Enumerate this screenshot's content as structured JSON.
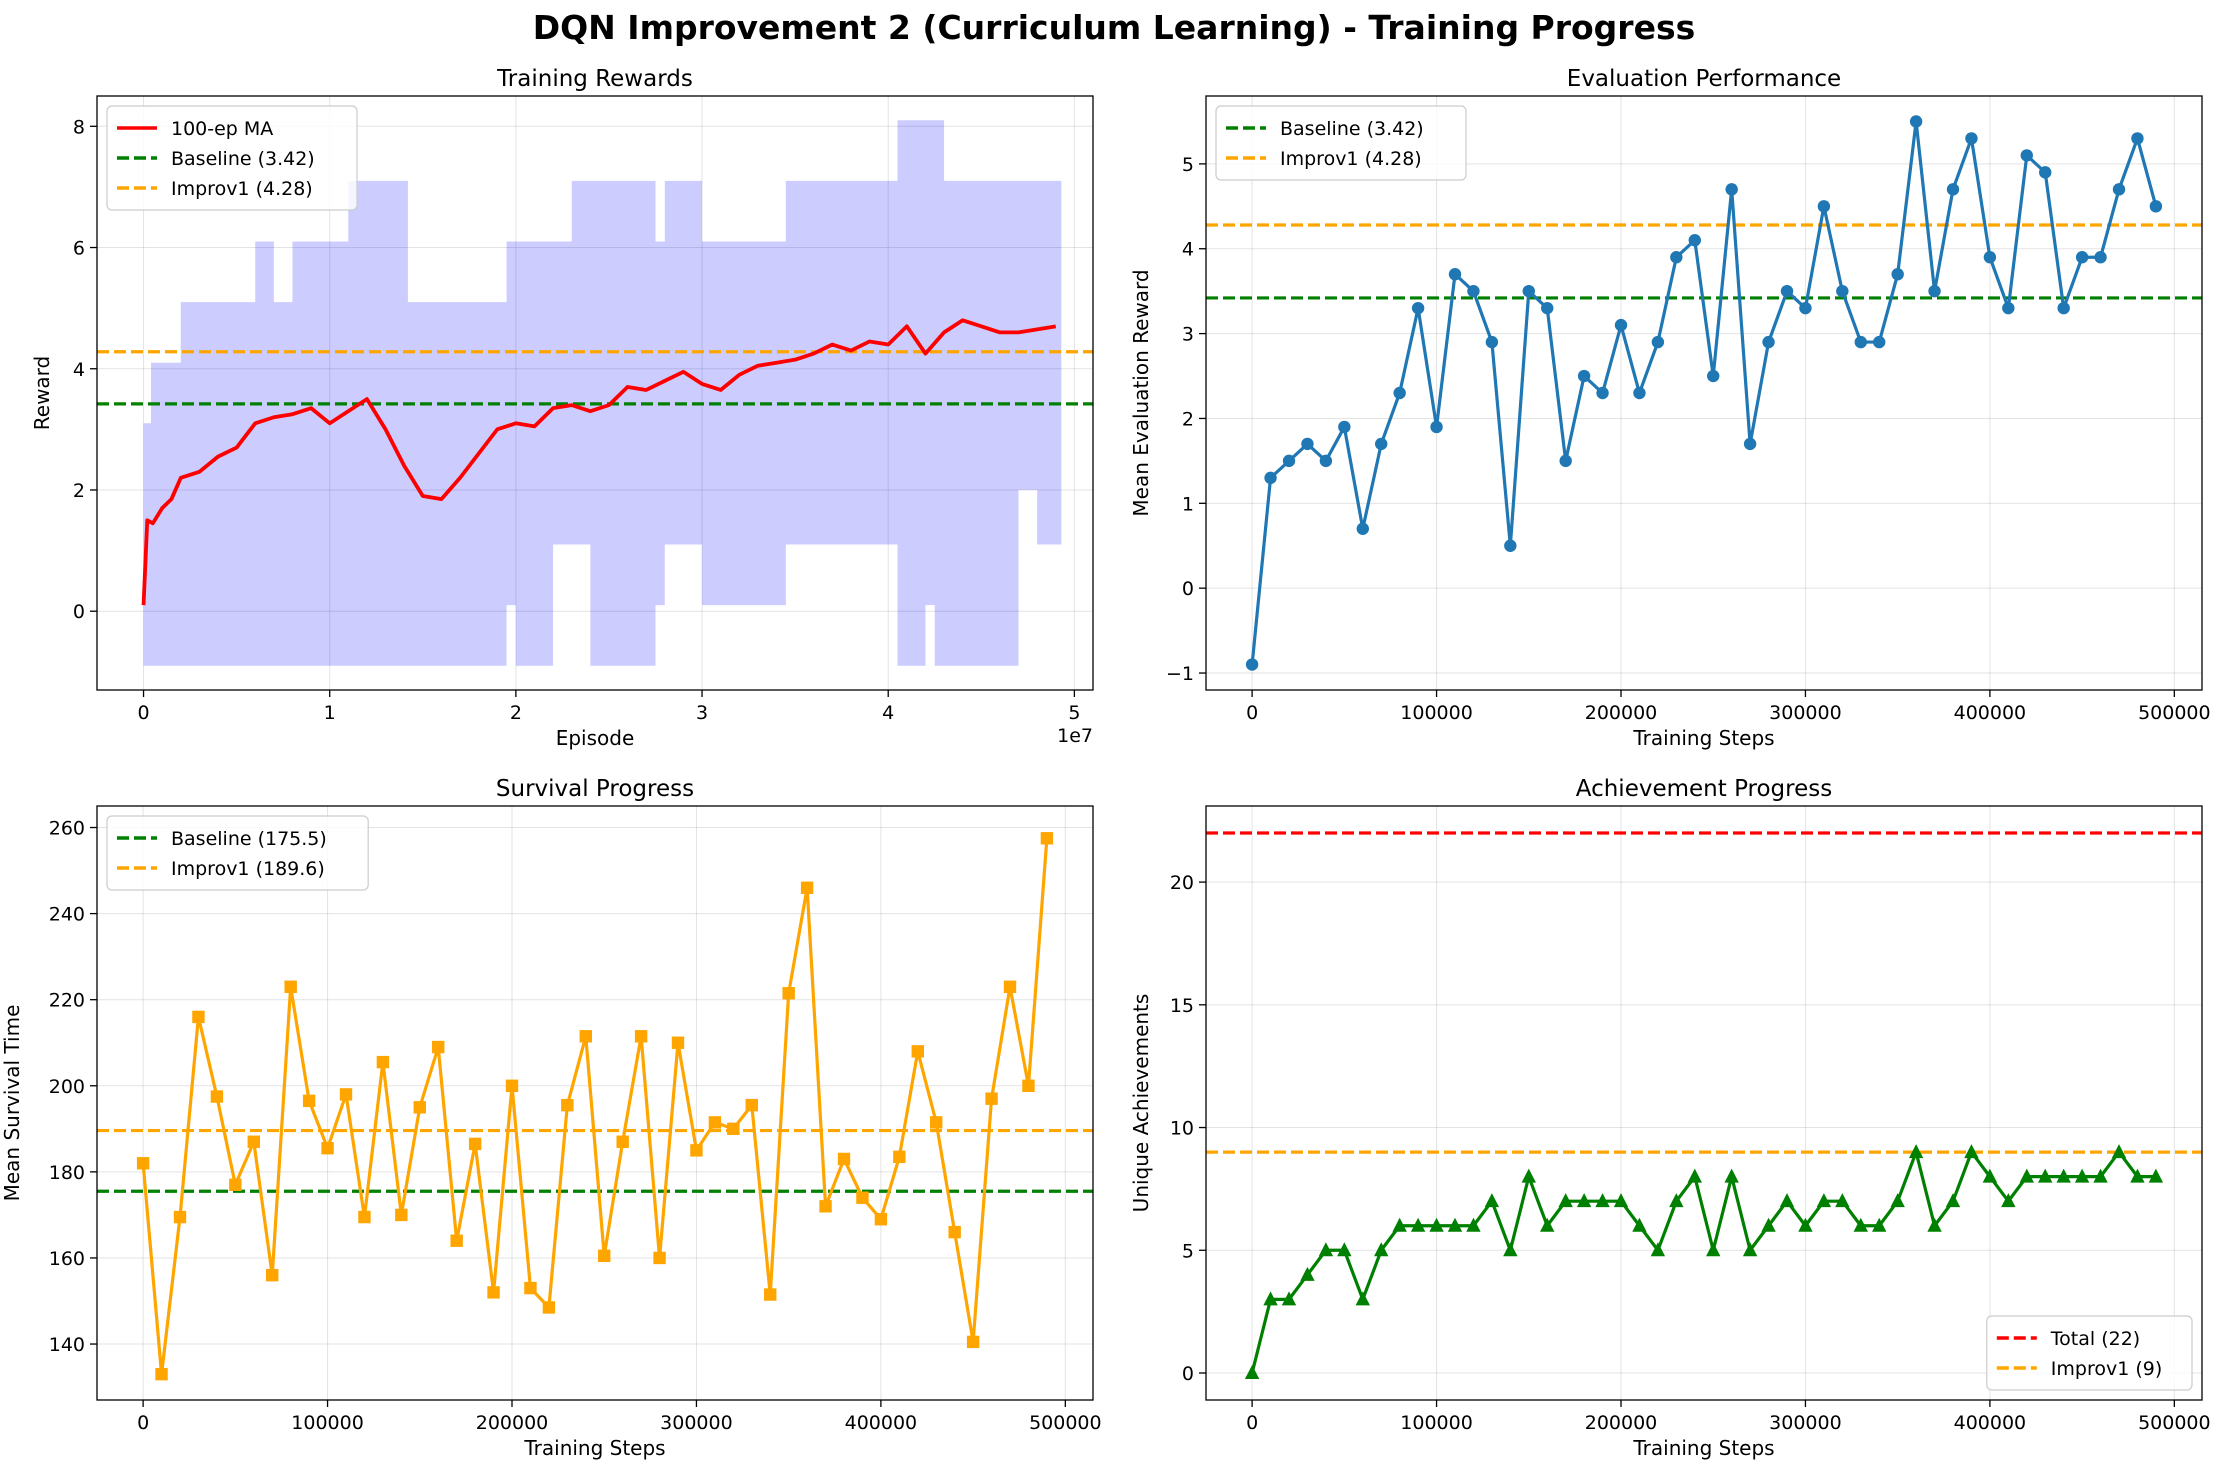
{
  "figure": {
    "suptitle": "DQN Improvement 2 (Curriculum Learning) - Training Progress"
  },
  "chart_data": [
    {
      "id": "training-rewards",
      "type": "line",
      "title": "Training Rewards",
      "xlabel": "Episode",
      "ylabel": "Reward",
      "x_offset_text": "1e7",
      "xlim": [
        -0.25,
        5.1
      ],
      "ylim": [
        -1.3,
        8.5
      ],
      "xticks": [
        0,
        1,
        2,
        3,
        4,
        5
      ],
      "yticks": [
        0,
        2,
        4,
        6,
        8
      ],
      "grid": true,
      "legend_placement": "upper-left",
      "legend": [
        "100-ep MA",
        "Baseline (3.42)",
        "Improv1 (4.28)"
      ],
      "series": [
        {
          "name": "100-ep MA",
          "color": "#ff0000",
          "x": [
            0,
            0.02,
            0.05,
            0.1,
            0.15,
            0.2,
            0.3,
            0.4,
            0.5,
            0.6,
            0.7,
            0.8,
            0.9,
            1.0,
            1.1,
            1.2,
            1.3,
            1.4,
            1.5,
            1.6,
            1.7,
            1.8,
            1.9,
            2.0,
            2.1,
            2.2,
            2.3,
            2.4,
            2.5,
            2.6,
            2.7,
            2.8,
            2.9,
            3.0,
            3.1,
            3.2,
            3.3,
            3.4,
            3.5,
            3.6,
            3.7,
            3.8,
            3.9,
            4.0,
            4.1,
            4.2,
            4.3,
            4.4,
            4.5,
            4.6,
            4.7,
            4.8,
            4.9
          ],
          "values": [
            0.1,
            1.5,
            1.45,
            1.7,
            1.85,
            2.2,
            2.3,
            2.55,
            2.7,
            3.1,
            3.2,
            3.25,
            3.35,
            3.1,
            3.3,
            3.5,
            3.0,
            2.4,
            1.9,
            1.85,
            2.2,
            2.6,
            3.0,
            3.1,
            3.05,
            3.35,
            3.4,
            3.3,
            3.4,
            3.7,
            3.65,
            3.8,
            3.95,
            3.75,
            3.65,
            3.9,
            4.05,
            4.1,
            4.15,
            4.25,
            4.4,
            4.3,
            4.45,
            4.4,
            4.7,
            4.25,
            4.6,
            4.8,
            4.7,
            4.6,
            4.6,
            4.65,
            4.7
          ]
        }
      ],
      "band": {
        "color": "#0000ff",
        "alpha": 0.2,
        "x": [
          0,
          0.04,
          0.2,
          0.4,
          0.6,
          0.7,
          0.8,
          1.0,
          1.1,
          1.26,
          1.42,
          1.75,
          1.95,
          2.0,
          2.1,
          2.2,
          2.3,
          2.4,
          2.5,
          2.6,
          2.75,
          2.8,
          2.85,
          2.92,
          3.0,
          3.1,
          3.3,
          3.45,
          3.6,
          3.75,
          3.9,
          4.0,
          4.05,
          4.15,
          4.2,
          4.25,
          4.3,
          4.4,
          4.5,
          4.6,
          4.7,
          4.8,
          4.85,
          4.9
        ],
        "upper": [
          3.1,
          4.1,
          5.1,
          5.1,
          6.1,
          5.1,
          6.1,
          6.1,
          7.1,
          7.1,
          5.1,
          5.1,
          6.1,
          6.1,
          6.1,
          6.1,
          7.1,
          7.1,
          7.1,
          7.1,
          6.1,
          7.1,
          7.1,
          7.1,
          6.1,
          6.1,
          6.1,
          7.1,
          7.1,
          7.1,
          7.1,
          7.1,
          8.1,
          8.1,
          8.1,
          8.1,
          7.1,
          7.1,
          7.1,
          7.1,
          7.1,
          7.1,
          7.1,
          7.1
        ],
        "lower": [
          -0.9,
          -0.9,
          -0.9,
          -0.9,
          -0.9,
          -0.9,
          -0.9,
          -0.9,
          -0.9,
          -0.9,
          -0.9,
          -0.9,
          0.1,
          -0.9,
          -0.9,
          1.1,
          1.1,
          -0.9,
          -0.9,
          -0.9,
          0.1,
          1.1,
          1.1,
          1.1,
          0.1,
          0.1,
          0.1,
          1.1,
          1.1,
          1.1,
          1.1,
          1.1,
          -0.9,
          -0.9,
          0.1,
          -0.9,
          -0.9,
          -0.9,
          -0.9,
          -0.9,
          2.0,
          1.1,
          1.1,
          1.1
        ]
      },
      "hlines": [
        {
          "name": "Baseline (3.42)",
          "value": 3.42,
          "color": "#008000"
        },
        {
          "name": "Improv1 (4.28)",
          "value": 4.28,
          "color": "#ffa500"
        }
      ]
    },
    {
      "id": "evaluation-performance",
      "type": "line",
      "title": "Evaluation Performance",
      "xlabel": "Training Steps",
      "ylabel": "Mean Evaluation Reward",
      "xlim": [
        -25000,
        515000
      ],
      "ylim": [
        -1.2,
        5.8
      ],
      "xticks": [
        0,
        100000,
        200000,
        300000,
        400000,
        500000
      ],
      "yticks": [
        -1,
        0,
        1,
        2,
        3,
        4,
        5
      ],
      "grid": true,
      "legend_placement": "upper-left",
      "legend": [
        "Baseline (3.42)",
        "Improv1 (4.28)"
      ],
      "marker": "circle",
      "series": [
        {
          "color": "#1f77b4",
          "x": [
            0,
            10000,
            20000,
            30000,
            40000,
            50000,
            60000,
            70000,
            80000,
            90000,
            100000,
            110000,
            120000,
            130000,
            140000,
            150000,
            160000,
            170000,
            180000,
            190000,
            200000,
            210000,
            220000,
            230000,
            240000,
            250000,
            260000,
            270000,
            280000,
            290000,
            300000,
            310000,
            320000,
            330000,
            340000,
            350000,
            360000,
            370000,
            380000,
            390000,
            400000,
            410000,
            420000,
            430000,
            440000,
            450000,
            460000,
            470000,
            480000,
            490000
          ],
          "values": [
            -0.9,
            1.3,
            1.5,
            1.7,
            1.5,
            1.9,
            0.7,
            1.7,
            2.3,
            3.3,
            1.9,
            3.7,
            3.5,
            2.9,
            0.5,
            3.5,
            3.3,
            1.5,
            2.5,
            2.3,
            3.1,
            2.3,
            2.9,
            3.9,
            4.1,
            2.5,
            4.7,
            1.7,
            2.9,
            3.5,
            3.3,
            4.5,
            3.5,
            2.9,
            2.9,
            3.7,
            5.5,
            3.5,
            4.7,
            5.3,
            3.9,
            3.3,
            5.1,
            4.9,
            3.3,
            3.9,
            3.9,
            4.7,
            5.3,
            4.5
          ]
        }
      ],
      "hlines": [
        {
          "name": "Baseline (3.42)",
          "value": 3.42,
          "color": "#008000"
        },
        {
          "name": "Improv1 (4.28)",
          "value": 4.28,
          "color": "#ffa500"
        }
      ]
    },
    {
      "id": "survival-progress",
      "type": "line",
      "title": "Survival Progress",
      "xlabel": "Training Steps",
      "ylabel": "Mean Survival Time",
      "xlim": [
        -25000,
        515000
      ],
      "ylim": [
        127,
        265
      ],
      "xticks": [
        0,
        100000,
        200000,
        300000,
        400000,
        500000
      ],
      "yticks": [
        140,
        160,
        180,
        200,
        220,
        240,
        260
      ],
      "grid": true,
      "legend_placement": "upper-left",
      "legend": [
        "Baseline (175.5)",
        "Improv1 (189.6)"
      ],
      "marker": "square",
      "series": [
        {
          "color": "#ffa500",
          "x": [
            0,
            10000,
            20000,
            30000,
            40000,
            50000,
            60000,
            70000,
            80000,
            90000,
            100000,
            110000,
            120000,
            130000,
            140000,
            150000,
            160000,
            170000,
            180000,
            190000,
            200000,
            210000,
            220000,
            230000,
            240000,
            250000,
            260000,
            270000,
            280000,
            290000,
            300000,
            310000,
            320000,
            330000,
            340000,
            350000,
            360000,
            370000,
            380000,
            390000,
            400000,
            410000,
            420000,
            430000,
            440000,
            450000,
            460000,
            470000,
            480000,
            490000
          ],
          "values": [
            182.0,
            133.0,
            169.5,
            216.0,
            197.5,
            177.0,
            187.0,
            156.0,
            223.0,
            196.5,
            185.5,
            198.0,
            169.5,
            205.5,
            170.0,
            195.0,
            209.0,
            164.0,
            186.5,
            152.0,
            200.0,
            153.0,
            148.5,
            195.5,
            211.5,
            160.5,
            187.0,
            211.5,
            160.0,
            210.0,
            185.0,
            191.5,
            190.0,
            195.5,
            151.5,
            221.5,
            246.0,
            172.0,
            183.0,
            174.0,
            169.0,
            183.5,
            208.0,
            191.5,
            166.0,
            140.5,
            197.0,
            223.0,
            200.0,
            257.5
          ]
        }
      ],
      "hlines": [
        {
          "name": "Baseline (175.5)",
          "value": 175.5,
          "color": "#008000"
        },
        {
          "name": "Improv1 (189.6)",
          "value": 189.6,
          "color": "#ffa500"
        }
      ]
    },
    {
      "id": "achievement-progress",
      "type": "line",
      "title": "Achievement Progress",
      "xlabel": "Training Steps",
      "ylabel": "Unique Achievements",
      "xlim": [
        -25000,
        515000
      ],
      "ylim": [
        -1.1,
        23.1
      ],
      "xticks": [
        0,
        100000,
        200000,
        300000,
        400000,
        500000
      ],
      "yticks": [
        0,
        5,
        10,
        15,
        20
      ],
      "grid": true,
      "legend_placement": "lower-right",
      "legend": [
        "Total (22)",
        "Improv1 (9)"
      ],
      "marker": "triangle",
      "series": [
        {
          "color": "#008000",
          "x": [
            0,
            10000,
            20000,
            30000,
            40000,
            50000,
            60000,
            70000,
            80000,
            90000,
            100000,
            110000,
            120000,
            130000,
            140000,
            150000,
            160000,
            170000,
            180000,
            190000,
            200000,
            210000,
            220000,
            230000,
            240000,
            250000,
            260000,
            270000,
            280000,
            290000,
            300000,
            310000,
            320000,
            330000,
            340000,
            350000,
            360000,
            370000,
            380000,
            390000,
            400000,
            410000,
            420000,
            430000,
            440000,
            450000,
            460000,
            470000,
            480000,
            490000
          ],
          "values": [
            0,
            3,
            3,
            4,
            5,
            5,
            3,
            5,
            6,
            6,
            6,
            6,
            6,
            7,
            5,
            8,
            6,
            7,
            7,
            7,
            7,
            6,
            5,
            7,
            8,
            5,
            8,
            5,
            6,
            7,
            6,
            7,
            7,
            6,
            6,
            7,
            9,
            6,
            7,
            9,
            8,
            7,
            8,
            8,
            8,
            8,
            8,
            9,
            8,
            8
          ]
        }
      ],
      "hlines": [
        {
          "name": "Total (22)",
          "value": 22,
          "color": "#ff0000"
        },
        {
          "name": "Improv1 (9)",
          "value": 9,
          "color": "#ffa500"
        }
      ]
    }
  ]
}
